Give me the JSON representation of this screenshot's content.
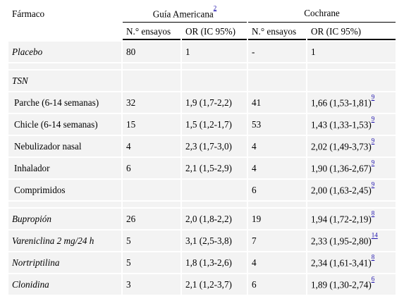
{
  "header": {
    "farmaco": "Fármaco",
    "group1": "Guía Americana",
    "group1_ref": "2",
    "group2": "Cochrane",
    "col_ensayos_1": "N.° ensayos",
    "col_or_1": "OR (IC 95%)",
    "col_ensayos_2": "N.° ensayos",
    "col_or_2": "OR (IC 95%)"
  },
  "rows": [
    {
      "name": "Placebo",
      "n1": "80",
      "or1": "1",
      "n2": "-",
      "or2": "1",
      "ref": ""
    },
    {
      "name": "TSN"
    },
    {
      "name": "Parche (6-14 semanas)",
      "n1": "32",
      "or1": "1,9 (1,7-2,2)",
      "n2": "41",
      "or2": "1,66 (1,53-1,81)",
      "ref": "9"
    },
    {
      "name": "Chicle (6-14 semanas)",
      "n1": "15",
      "or1": "1,5 (1,2-1,7)",
      "n2": "53",
      "or2": "1,43 (1,33-1,53)",
      "ref": "9"
    },
    {
      "name": "Nebulizador nasal",
      "n1": "4",
      "or1": "2,3 (1,7-3,0)",
      "n2": "4",
      "or2": "2,02 (1,49-3,73)",
      "ref": "9"
    },
    {
      "name": "Inhalador",
      "n1": "6",
      "or1": "2,1 (1,5-2,9)",
      "n2": "4",
      "or2": "1,90 (1,36-2,67)",
      "ref": "9"
    },
    {
      "name": "Comprimidos",
      "n1": "",
      "or1": "",
      "n2": "6",
      "or2": "2,00 (1,63-2,45)",
      "ref": "9"
    },
    {
      "name": "Bupropión",
      "n1": "26",
      "or1": "2,0 (1,8-2,2)",
      "n2": "19",
      "or2": "1,94 (1,72-2,19)",
      "ref": "8"
    },
    {
      "name": "Vareniclina 2 mg/24 h",
      "n1": "5",
      "or1": "3,1 (2,5-3,8)",
      "n2": "7",
      "or2": "2,33 (1,95-2,80)",
      "ref": "14"
    },
    {
      "name": "Nortriptilina",
      "n1": "5",
      "or1": "1,8 (1,3-2,6)",
      "n2": "4",
      "or2": "2,34 (1,61-3,41)",
      "ref": "8"
    },
    {
      "name": "Clonidina",
      "n1": "3",
      "or1": "2,1 (1,2-3,7)",
      "n2": "6",
      "or2": "1,89 (1,30-2,74)",
      "ref": "6"
    }
  ]
}
